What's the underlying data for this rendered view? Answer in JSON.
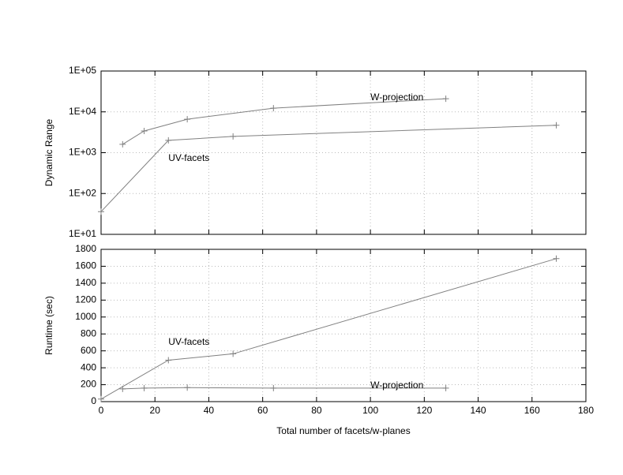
{
  "chart_data": [
    {
      "type": "line",
      "ylabel": "Dynamic Range",
      "log_y": true,
      "grid": true,
      "xlim": [
        0,
        180
      ],
      "xticks": [
        0,
        20,
        40,
        60,
        80,
        100,
        120,
        140,
        160,
        180
      ],
      "ylim": [
        10,
        100000
      ],
      "yticks": [
        {
          "value": 10,
          "label": "1E+01"
        },
        {
          "value": 100,
          "label": "1E+02"
        },
        {
          "value": 1000,
          "label": "1E+03"
        },
        {
          "value": 10000,
          "label": "1E+04"
        },
        {
          "value": 100000,
          "label": "1E+05"
        }
      ],
      "series": [
        {
          "name": "W-projection",
          "color": "#808080",
          "x": [
            8,
            16,
            32,
            64,
            128
          ],
          "values": [
            1600,
            3400,
            6600,
            12300,
            21000
          ]
        },
        {
          "name": "UV-facets",
          "color": "#808080",
          "x": [
            0,
            25,
            49,
            169
          ],
          "values": [
            36,
            2000,
            2500,
            4700
          ]
        }
      ],
      "annotations": [
        {
          "text": "W-projection",
          "x": 100,
          "y": 22000
        },
        {
          "text": "UV-facets",
          "x": 25,
          "y": 720
        }
      ]
    },
    {
      "type": "line",
      "ylabel": "Runtime (sec)",
      "xlabel": "Total number of facets/w-planes",
      "log_y": false,
      "grid": true,
      "xlim": [
        0,
        180
      ],
      "xticks": [
        0,
        20,
        40,
        60,
        80,
        100,
        120,
        140,
        160,
        180
      ],
      "ylim": [
        0,
        1800
      ],
      "yticks": [
        0,
        200,
        400,
        600,
        800,
        1000,
        1200,
        1400,
        1600,
        1800
      ],
      "series": [
        {
          "name": "UV-facets",
          "color": "#808080",
          "x": [
            0,
            25,
            49,
            169
          ],
          "values": [
            30,
            490,
            565,
            1690
          ]
        },
        {
          "name": "W-projection",
          "color": "#808080",
          "x": [
            8,
            16,
            32,
            64,
            128
          ],
          "values": [
            150,
            160,
            165,
            160,
            160
          ]
        }
      ],
      "annotations": [
        {
          "text": "UV-facets",
          "x": 25,
          "y": 700
        },
        {
          "text": "W-projection",
          "x": 100,
          "y": 190
        }
      ]
    }
  ]
}
